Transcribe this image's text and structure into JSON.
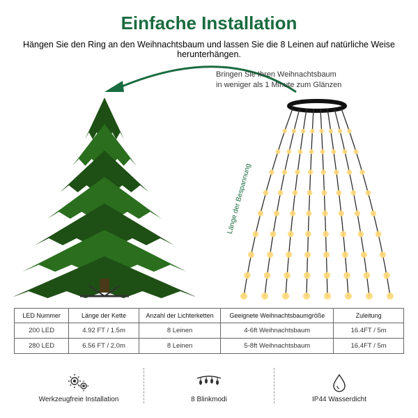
{
  "title": "Einfache Installation",
  "title_color": "#1a6b3f",
  "subtitle": "Hängen Sie den Ring an den Weihnachtsbaum und lassen Sie die 8 Leinen auf natürliche Weise herunterhängen.",
  "sub_line1": "Bringen Sie Ihren Weihnachtsbaum",
  "sub_line2": "in weniger als 1 Minute zum Glänzen",
  "length_label": "Länge der Bespannung",
  "length_label_color": "#1a6b3f",
  "tree_color": "#2a6e1e",
  "tree_dark": "#1e4f15",
  "light_color": "#ffd97a",
  "strand_color": "#2b2b2b",
  "arrow_color": "#1a6b3f",
  "table": {
    "headers": [
      "LED Nummer",
      "Länge der Kette",
      "Anzahl der Lichterketten",
      "Geeignete Weihnachtsbaumgröße",
      "Zuleitung"
    ],
    "rows": [
      [
        "200 LED",
        "4.92 FT / 1.5m",
        "8 Leinen",
        "4-6ft Weihnachtsbaum",
        "16.4FT / 5m"
      ],
      [
        "280 LED",
        "6.56 FT / 2.0m",
        "8 Leinen",
        "5-8ft Weihnachtsbaum",
        "16.4FT / 5m"
      ]
    ],
    "col_widths": [
      "14%",
      "18%",
      "21%",
      "29%",
      "18%"
    ]
  },
  "features": [
    {
      "label": "Werkzeugfreie Installation",
      "icon": "gears"
    },
    {
      "label": "8 Blinkmodi",
      "icon": "lightstring"
    },
    {
      "label": "IP44 Wasserdicht",
      "icon": "droplet"
    }
  ],
  "feature_icon_color": "#333333"
}
